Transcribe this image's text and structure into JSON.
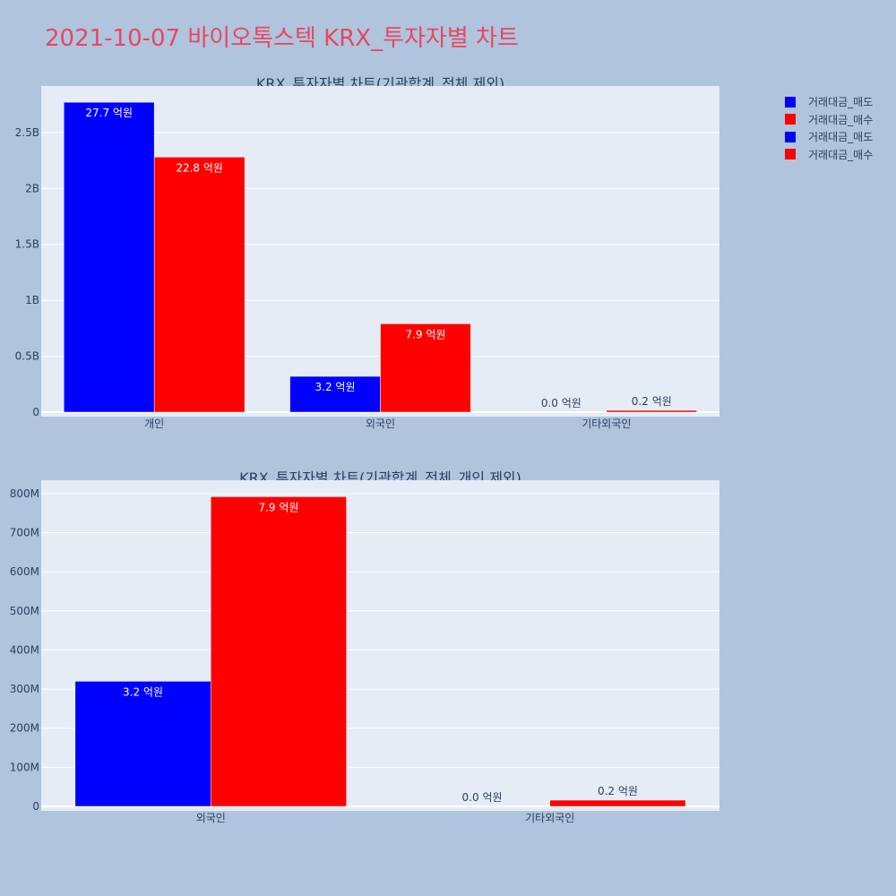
{
  "title": "2021-10-07 바이오톡스텍 KRX_투자자별 차트",
  "colors": {
    "background": "#b0c4de",
    "plot_bg": "#e5ecf6",
    "sell": "#0000ff",
    "buy": "#ff0000",
    "title": "#e8475f",
    "text": "#2a3f5f"
  },
  "legend": [
    {
      "label": "거래대금_매도",
      "color": "#0000ff"
    },
    {
      "label": "거래대금_매수",
      "color": "#ff0000"
    },
    {
      "label": "거래대금_매도",
      "color": "#0000ff"
    },
    {
      "label": "거래대금_매수",
      "color": "#ff0000"
    }
  ],
  "chart_data": [
    {
      "type": "bar",
      "title": "KRX_투자자별 차트(기관합계_전체 제외)",
      "categories": [
        "개인",
        "외국인",
        "기타외국인"
      ],
      "series": [
        {
          "name": "거래대금_매도",
          "values": [
            2770000000,
            320000000,
            0
          ],
          "labels": [
            "27.7 억원",
            "3.2 억원",
            "0.0 억원"
          ]
        },
        {
          "name": "거래대금_매수",
          "values": [
            2280000000,
            790000000,
            16000000
          ],
          "labels": [
            "22.8 억원",
            "7.9 억원",
            "0.2 억원"
          ]
        }
      ],
      "yticks": [
        0,
        500000000,
        1000000000,
        1500000000,
        2000000000,
        2500000000
      ],
      "ytick_labels": [
        "0",
        "0.5B",
        "1B",
        "1.5B",
        "2B",
        "2.5B"
      ],
      "ylim": [
        0,
        2915000000
      ],
      "grid": true,
      "legend_position": "right"
    },
    {
      "type": "bar",
      "title": "KRX_투자자별 차트(기관합계_전체_개인 제외)",
      "categories": [
        "외국인",
        "기타외국인"
      ],
      "series": [
        {
          "name": "거래대금_매도",
          "values": [
            320000000,
            0
          ],
          "labels": [
            "3.2 억원",
            "0.0 억원"
          ]
        },
        {
          "name": "거래대금_매수",
          "values": [
            792000000,
            16000000
          ],
          "labels": [
            "7.9 억원",
            "0.2 억원"
          ]
        }
      ],
      "yticks": [
        0,
        100000000,
        200000000,
        300000000,
        400000000,
        500000000,
        600000000,
        700000000,
        800000000
      ],
      "ytick_labels": [
        "0",
        "100M",
        "200M",
        "300M",
        "400M",
        "500M",
        "600M",
        "700M",
        "800M"
      ],
      "ylim": [
        0,
        834000000
      ],
      "grid": true,
      "legend_position": "right"
    }
  ]
}
